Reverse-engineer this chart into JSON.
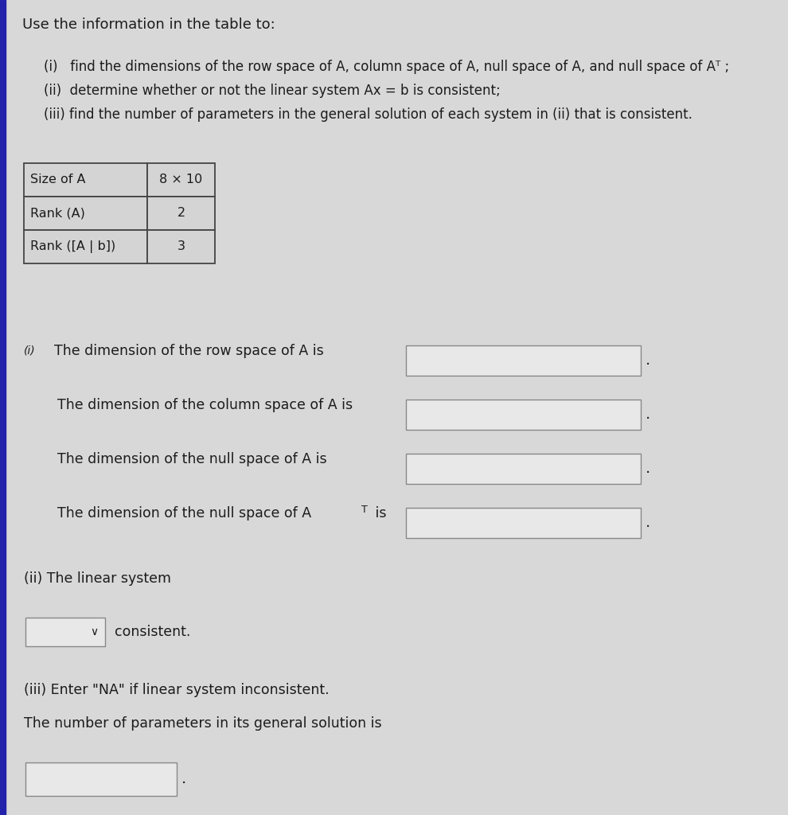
{
  "title": "Use the information in the table to:",
  "instructions": [
    "(i)   find the dimensions of the row space of A, column space of A, null space of A, and null space of Aᵀ ;",
    "(ii)  determine whether or not the linear system Ax = b is consistent;",
    "(iii) find the number of parameters in the general solution of each system in (ii) that is consistent."
  ],
  "table_rows": [
    [
      "Size of A",
      "8 × 10"
    ],
    [
      "Rank (A)",
      "2"
    ],
    [
      "Rank ([A | b])",
      "3"
    ]
  ],
  "part_i_prefix": "(i)",
  "part_i_lines": [
    "The dimension of the row space of A is",
    "The dimension of the column space of A is",
    "The dimension of the null space of A is",
    "The dimension of the null space of A"
  ],
  "part_ii_label": "(ii) The linear system",
  "consistent_label": "consistent.",
  "part_iii_label": "(iii) Enter \"NA\" if linear system inconsistent.",
  "params_label": "The number of parameters in its general solution is",
  "bg_color": "#d8d8d8",
  "page_color": "#e0e0e0",
  "text_color": "#1c1c1c",
  "box_edge_color": "#888888",
  "box_fill": "#e8e8e8",
  "table_border": "#444444",
  "table_fill": "#d4d4d4",
  "left_bar_color": "#2222aa",
  "left_bar_width": 0.055
}
